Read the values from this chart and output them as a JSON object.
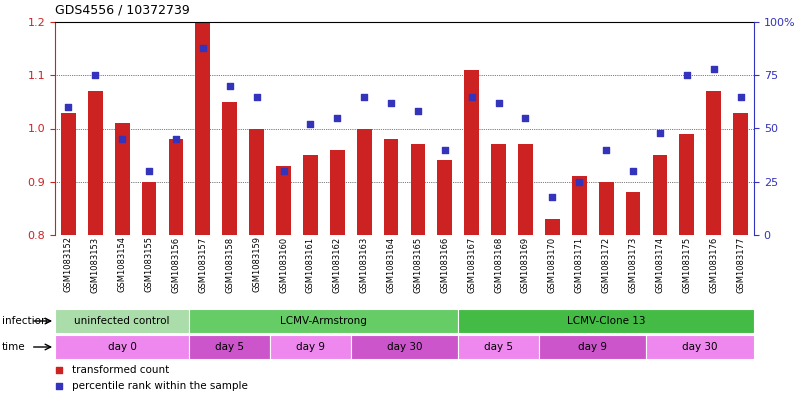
{
  "title": "GDS4556 / 10372739",
  "samples": [
    "GSM1083152",
    "GSM1083153",
    "GSM1083154",
    "GSM1083155",
    "GSM1083156",
    "GSM1083157",
    "GSM1083158",
    "GSM1083159",
    "GSM1083160",
    "GSM1083161",
    "GSM1083162",
    "GSM1083163",
    "GSM1083164",
    "GSM1083165",
    "GSM1083166",
    "GSM1083167",
    "GSM1083168",
    "GSM1083169",
    "GSM1083170",
    "GSM1083171",
    "GSM1083172",
    "GSM1083173",
    "GSM1083174",
    "GSM1083175",
    "GSM1083176",
    "GSM1083177"
  ],
  "bar_values": [
    1.03,
    1.07,
    1.01,
    0.9,
    0.98,
    1.2,
    1.05,
    1.0,
    0.93,
    0.95,
    0.96,
    1.0,
    0.98,
    0.97,
    0.94,
    1.11,
    0.97,
    0.97,
    0.83,
    0.91,
    0.9,
    0.88,
    0.95,
    0.99,
    1.07,
    1.03
  ],
  "dot_values": [
    60,
    75,
    45,
    30,
    45,
    88,
    70,
    65,
    30,
    52,
    55,
    65,
    62,
    58,
    40,
    65,
    62,
    55,
    18,
    25,
    40,
    30,
    48,
    75,
    78,
    65
  ],
  "ylim_left": [
    0.8,
    1.2
  ],
  "ylim_right": [
    0,
    100
  ],
  "yticks_left": [
    0.8,
    0.9,
    1.0,
    1.1,
    1.2
  ],
  "yticks_right": [
    0,
    25,
    50,
    75,
    100
  ],
  "bar_color": "#CC2222",
  "dot_color": "#3333BB",
  "background_color": "#ffffff",
  "plot_bg_color": "#ffffff",
  "tick_label_bg": "#d8d8d8",
  "infection_row": [
    {
      "label": "uninfected control",
      "start": 0,
      "end": 5,
      "color": "#aaddaa"
    },
    {
      "label": "LCMV-Armstrong",
      "start": 5,
      "end": 15,
      "color": "#66cc66"
    },
    {
      "label": "LCMV-Clone 13",
      "start": 15,
      "end": 26,
      "color": "#44bb44"
    }
  ],
  "time_row": [
    {
      "label": "day 0",
      "start": 0,
      "end": 5,
      "color": "#ee88ee"
    },
    {
      "label": "day 5",
      "start": 5,
      "end": 8,
      "color": "#cc55cc"
    },
    {
      "label": "day 9",
      "start": 8,
      "end": 11,
      "color": "#ee88ee"
    },
    {
      "label": "day 30",
      "start": 11,
      "end": 15,
      "color": "#cc55cc"
    },
    {
      "label": "day 5",
      "start": 15,
      "end": 18,
      "color": "#ee88ee"
    },
    {
      "label": "day 9",
      "start": 18,
      "end": 22,
      "color": "#cc55cc"
    },
    {
      "label": "day 30",
      "start": 22,
      "end": 26,
      "color": "#ee88ee"
    }
  ],
  "legend_items": [
    {
      "label": "transformed count",
      "color": "#CC2222"
    },
    {
      "label": "percentile rank within the sample",
      "color": "#3333BB"
    }
  ]
}
